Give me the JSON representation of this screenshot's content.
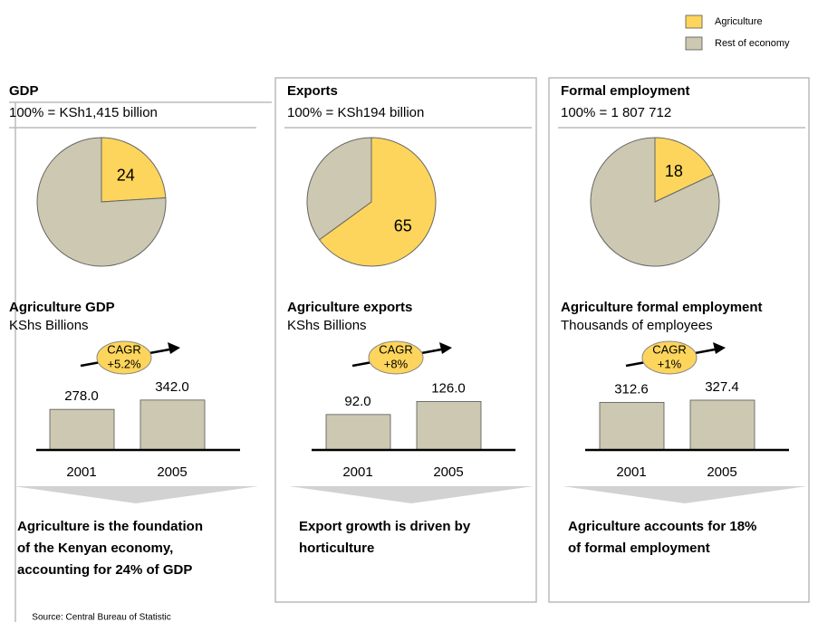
{
  "legend": [
    {
      "name": "Agriculture",
      "color": "#fdd55c"
    },
    {
      "name": "Rest of economy",
      "color": "#cdc8b1"
    }
  ],
  "chart_data": [
    {
      "type": "pie",
      "title": "GDP",
      "subtitle": "100% = KSh1,415 billion",
      "values": [
        24,
        76
      ],
      "value_labels": [
        "24",
        null
      ]
    },
    {
      "type": "pie",
      "title": "Exports",
      "subtitle": "100% = KSh194 billion",
      "values": [
        65,
        35
      ],
      "value_labels": [
        "65",
        null
      ]
    },
    {
      "type": "pie",
      "title": "Formal employment",
      "subtitle": "100% = 1 807 712",
      "values": [
        18,
        82
      ],
      "value_labels": [
        "18",
        null
      ]
    },
    {
      "type": "bar",
      "title": "Agriculture GDP",
      "subtitle": "KShs Billions",
      "categories": [
        "2001",
        "2005"
      ],
      "values": [
        278.0,
        342.0
      ],
      "value_labels": [
        "278.0",
        "342.0"
      ],
      "ylim": [
        0,
        620
      ],
      "color": "#cdc8b1",
      "annotation": [
        "CAGR",
        "+5.2%"
      ],
      "conclusion": [
        "Agriculture is the foundation",
        "of the Kenyan economy,",
        "accounting for 24% of GDP"
      ]
    },
    {
      "type": "bar",
      "title": "Agriculture exports",
      "subtitle": "KShs Billions",
      "categories": [
        "2001",
        "2005"
      ],
      "values": [
        92.0,
        126.0
      ],
      "value_labels": [
        "92.0",
        "126.0"
      ],
      "ylim": [
        0,
        235
      ],
      "color": "#cdc8b1",
      "annotation": [
        "CAGR",
        "+8%"
      ],
      "conclusion": [
        "Export growth is driven by",
        "horticulture"
      ]
    },
    {
      "type": "bar",
      "title": "Agriculture formal employment",
      "subtitle": "Thousands of employees",
      "categories": [
        "2001",
        "2005"
      ],
      "values": [
        312.6,
        327.4
      ],
      "value_labels": [
        "312.6",
        "327.4"
      ],
      "ylim": [
        0,
        595
      ],
      "color": "#cdc8b1",
      "annotation": [
        "CAGR",
        "+1%"
      ],
      "conclusion": [
        "Agriculture accounts for 18%",
        "of formal employment"
      ]
    }
  ],
  "source": "Source: Central Bureau of Statistic"
}
